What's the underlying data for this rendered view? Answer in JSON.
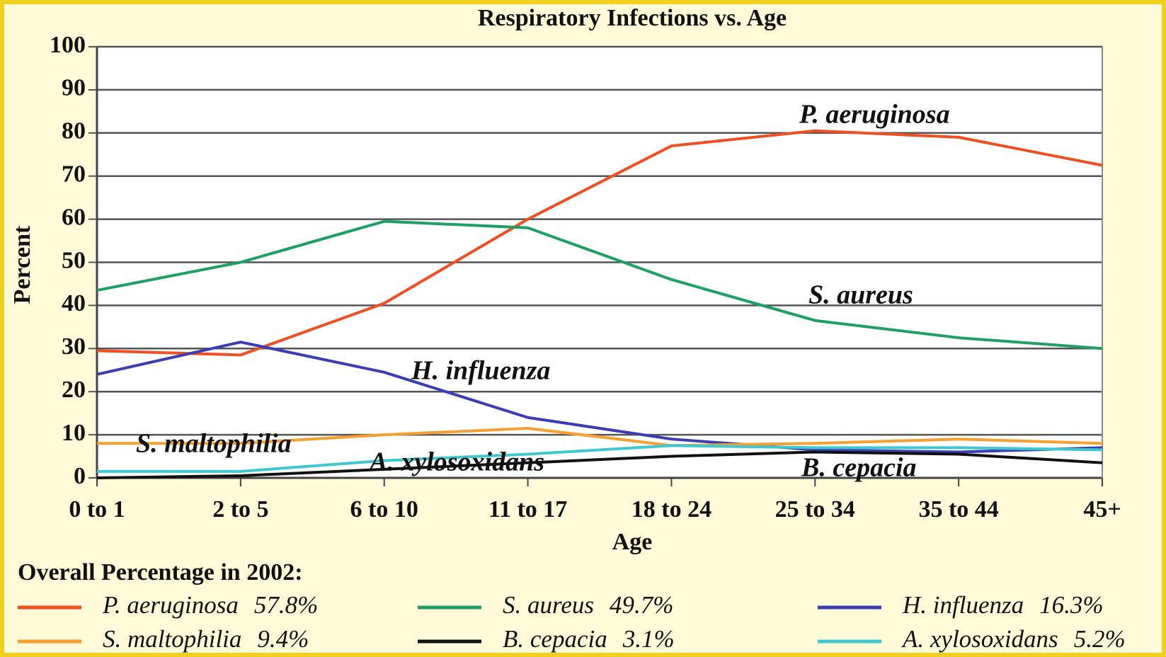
{
  "chart_data": {
    "type": "line",
    "title": "Respiratory Infections vs. Age",
    "x_label": "Age",
    "y_label": "Percent",
    "legend_title": "Overall Percentage in 2002:",
    "categories": [
      "0 to 1",
      "2 to 5",
      "6 to 10",
      "11 to 17",
      "18 to 24",
      "25 to 34",
      "35 to 44",
      "45+"
    ],
    "ylim": [
      0,
      100
    ],
    "yticks": [
      0,
      10,
      20,
      30,
      40,
      50,
      60,
      70,
      80,
      90,
      100
    ],
    "grid": true,
    "series": [
      {
        "name": "P. aeruginosa",
        "color": "#f04e23",
        "values": [
          29.5,
          28.5,
          40.5,
          60,
          77,
          80.5,
          79,
          72.5
        ],
        "overall": {
          "value": 57.8,
          "label": "57.8%"
        }
      },
      {
        "name": "S. aureus",
        "color": "#1ea064",
        "values": [
          43.5,
          50,
          59.5,
          58,
          46,
          36.5,
          32.5,
          30
        ],
        "overall": {
          "value": 49.7,
          "label": "49.7%"
        }
      },
      {
        "name": "H. influenza",
        "color": "#3c3cb4",
        "values": [
          24,
          31.5,
          24.5,
          14,
          9,
          6.5,
          6,
          7
        ],
        "overall": {
          "value": 16.3,
          "label": "16.3%"
        }
      },
      {
        "name": "S. maltophilia",
        "color": "#f5a030",
        "values": [
          8,
          8,
          10,
          11.5,
          7.5,
          8,
          9,
          8
        ],
        "overall": {
          "value": 9.4,
          "label": "9.4%"
        }
      },
      {
        "name": "B. cepacia",
        "color": "#111111",
        "values": [
          0,
          0.5,
          2,
          3.5,
          5,
          6,
          5.5,
          3.5
        ],
        "overall": {
          "value": 3.1,
          "label": "3.1%"
        }
      },
      {
        "name": "A. xylosoxidans",
        "color": "#40c8d0",
        "values": [
          1.5,
          1.5,
          4,
          5.5,
          7.5,
          7,
          7,
          6.5
        ],
        "overall": {
          "value": 5.2,
          "label": "5.2%"
        }
      }
    ]
  }
}
